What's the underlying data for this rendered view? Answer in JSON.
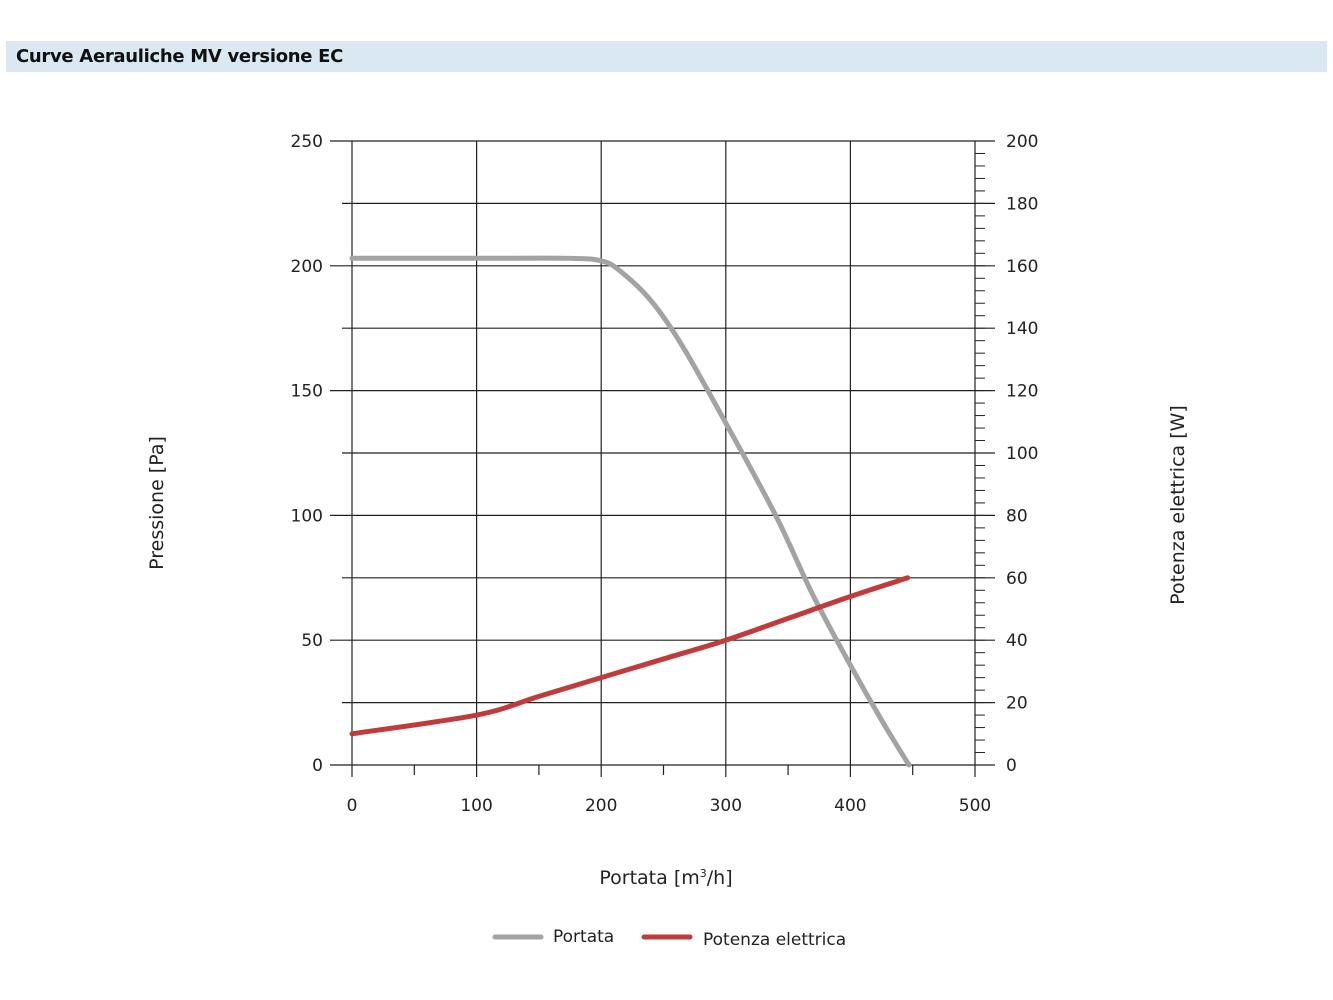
{
  "header": {
    "title": "Curve Aerauliche MV versione EC"
  },
  "colors": {
    "portata": "#a3a3a3",
    "potenza": "#c23b3b",
    "title_bar": "#d9e8f1",
    "grid": "#222222"
  },
  "chart_data": {
    "type": "line",
    "xlabel_prefix": "Portata [m",
    "xlabel_sup": "3",
    "xlabel_suffix": "/h]",
    "ylabel_left": "Pressione [Pa]",
    "ylabel_right": "Potenza elettrica [W]",
    "xlim": [
      0,
      500
    ],
    "ylim_left": [
      0,
      250
    ],
    "ylim_right": [
      0,
      200
    ],
    "x_ticks": [
      "0",
      "100",
      "200",
      "300",
      "400",
      "500"
    ],
    "y_left_ticks": [
      "0",
      "50",
      "100",
      "150",
      "200",
      "250"
    ],
    "y_right_ticks": [
      "0",
      "20",
      "40",
      "60",
      "80",
      "100",
      "120",
      "140",
      "160",
      "180",
      "200"
    ],
    "grid": true,
    "legend_position": "bottom",
    "series": [
      {
        "name": "Portata",
        "axis": "left",
        "x": [
          0,
          100,
          175,
          200,
          215,
          240,
          265,
          300,
          340,
          370,
          400,
          425,
          447
        ],
        "y": [
          203,
          203,
          203,
          202,
          198,
          186,
          168,
          137,
          100,
          68,
          40,
          18,
          0
        ]
      },
      {
        "name": "Potenza elettrica",
        "axis": "right",
        "x": [
          0,
          100,
          150,
          200,
          250,
          300,
          350,
          400,
          446
        ],
        "y": [
          10,
          16,
          22,
          28,
          34,
          40,
          47,
          54,
          60
        ]
      }
    ]
  }
}
